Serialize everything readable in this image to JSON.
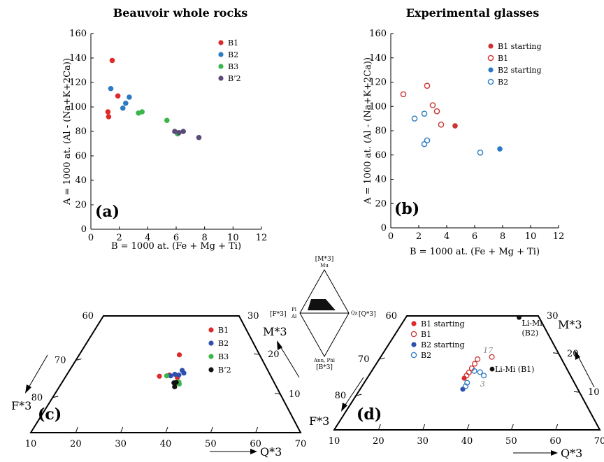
{
  "colors": {
    "B1": "#dd2a2a",
    "B2": "#2f4fae",
    "B3": "#3cb54a",
    "B2b": "#111111",
    "B2_plain": "#2c7bc2",
    "overlap": "#5a4a78",
    "B1_exp": "#cc3333",
    "B2_exp": "#2c7bc2"
  },
  "chart_data": [
    {
      "type": "scatter",
      "panel": "(a)",
      "title": "Beauvoir whole rocks",
      "xlabel": "B = 1000 at. (Fe + Mg + Ti)",
      "ylabel": "A = 1000 at. (Al - (Na+K+2Ca))",
      "xlim": [
        0,
        12
      ],
      "ylim": [
        0,
        160
      ],
      "xticks": [
        "0",
        "2",
        "4",
        "6",
        "8",
        "10",
        "12"
      ],
      "yticks": [
        "0",
        "20",
        "40",
        "60",
        "80",
        "100",
        "120",
        "140",
        "160"
      ],
      "legend_position": "top-right",
      "legend": [
        "B1",
        "B2",
        "B3",
        "B’2"
      ],
      "series": [
        {
          "name": "B1",
          "color": "#dd2a2a",
          "points": [
            [
              1.5,
              138
            ],
            [
              1.9,
              109
            ],
            [
              1.2,
              96
            ],
            [
              1.25,
              92
            ]
          ]
        },
        {
          "name": "B2",
          "color": "#2c7bc2",
          "points": [
            [
              1.4,
              115
            ],
            [
              2.7,
              108
            ],
            [
              2.45,
              103
            ],
            [
              2.25,
              99
            ]
          ]
        },
        {
          "name": "B3",
          "color": "#3cb54a",
          "points": [
            [
              3.35,
              95
            ],
            [
              3.6,
              96
            ],
            [
              5.35,
              89
            ],
            [
              6.1,
              78
            ]
          ]
        },
        {
          "name": "B’2",
          "color": "#5a4a78",
          "points": [
            [
              5.9,
              80
            ],
            [
              6.2,
              79
            ],
            [
              6.5,
              80
            ],
            [
              7.6,
              75
            ]
          ]
        }
      ]
    },
    {
      "type": "scatter",
      "panel": "(b)",
      "title": "Experimental glasses",
      "xlabel": "B = 1000 at. (Fe + Mg + Ti)",
      "ylabel": "A = 1000 at. (Al - (Na+K+2Ca))",
      "xlim": [
        0,
        12
      ],
      "ylim": [
        0,
        160
      ],
      "xticks": [
        "0",
        "2",
        "4",
        "6",
        "8",
        "10",
        "12"
      ],
      "yticks": [
        "0",
        "20",
        "40",
        "60",
        "80",
        "100",
        "120",
        "140",
        "160"
      ],
      "legend_position": "top-right",
      "legend": [
        "B1 starting",
        "B1",
        "B2 starting",
        "B2"
      ],
      "series": [
        {
          "name": "B1 starting",
          "color": "#cc3333",
          "filled": true,
          "points": [
            [
              4.6,
              84
            ]
          ]
        },
        {
          "name": "B1",
          "color": "#cc3333",
          "filled": false,
          "points": [
            [
              0.9,
              110
            ],
            [
              2.6,
              117
            ],
            [
              3.0,
              101
            ],
            [
              3.3,
              96
            ],
            [
              3.6,
              85
            ]
          ]
        },
        {
          "name": "B2 starting",
          "color": "#2c7bc2",
          "filled": true,
          "points": [
            [
              7.8,
              65
            ]
          ]
        },
        {
          "name": "B2",
          "color": "#2c7bc2",
          "filled": false,
          "points": [
            [
              1.7,
              90
            ],
            [
              2.4,
              94
            ],
            [
              2.4,
              69
            ],
            [
              2.6,
              72
            ],
            [
              6.4,
              62
            ]
          ]
        }
      ]
    },
    {
      "type": "scatter",
      "panel": "(c)",
      "subtype": "ternary-trapezoid",
      "axes": {
        "bottom": "Q*3",
        "left": "F*3",
        "right": "M*3"
      },
      "bottom_ticks": [
        "10",
        "20",
        "30",
        "40",
        "50",
        "60",
        "70"
      ],
      "left_ticks": [
        "60",
        "70",
        "80"
      ],
      "right_ticks": [
        "30",
        "20",
        "10"
      ],
      "legend_position": "top-right",
      "legend": [
        "B1",
        "B2",
        "B3",
        "B’2"
      ],
      "series": [
        {
          "name": "B1",
          "color": "#dd2a2a",
          "points": [
            [
              42.2,
              20.0
            ],
            [
              38.0,
              14.5
            ],
            [
              40.2,
              14.8
            ],
            [
              42.0,
              14.2
            ]
          ]
        },
        {
          "name": "B2",
          "color": "#2f4fae",
          "points": [
            [
              43.0,
              16.0
            ],
            [
              43.4,
              15.3
            ],
            [
              42.3,
              14.8
            ],
            [
              41.4,
              15.0
            ],
            [
              40.5,
              14.6
            ]
          ]
        },
        {
          "name": "B3",
          "color": "#3cb54a",
          "points": [
            [
              39.6,
              14.6
            ],
            [
              42.4,
              13.0
            ],
            [
              42.5,
              12.5
            ]
          ]
        },
        {
          "name": "B’2",
          "color": "#111111",
          "points": [
            [
              41.3,
              12.8
            ],
            [
              41.8,
              12.9
            ],
            [
              41.5,
              11.8
            ]
          ]
        }
      ]
    },
    {
      "type": "scatter",
      "panel": "(d)",
      "subtype": "ternary-trapezoid",
      "axes": {
        "bottom": "Q*3",
        "left": "F*3",
        "right": "M*3"
      },
      "bottom_ticks": [
        "10",
        "20",
        "30",
        "40",
        "50",
        "60",
        "70"
      ],
      "left_ticks": [
        "60",
        "70",
        "80"
      ],
      "right_ticks": [
        "30",
        "20",
        "10"
      ],
      "legend_position": "top-left",
      "legend": [
        "B1 starting",
        "B1",
        "B2 starting",
        "B2"
      ],
      "series": [
        {
          "name": "B1 starting",
          "color": "#dd2a2a",
          "filled": true,
          "points": [
            [
              38.8,
              13.6
            ]
          ]
        },
        {
          "name": "B1",
          "color": "#cc3333",
          "filled": false,
          "points": [
            [
              41.6,
              18.6
            ],
            [
              41.0,
              17.4
            ],
            [
              40.4,
              16.2
            ],
            [
              39.8,
              15.1
            ],
            [
              39.3,
              14.3
            ],
            [
              44.8,
              19.2
            ]
          ]
        },
        {
          "name": "B2 starting",
          "color": "#2f4fae",
          "filled": true,
          "points": [
            [
              38.6,
              10.7
            ]
          ]
        },
        {
          "name": "B2",
          "color": "#2c7bc2",
          "filled": false,
          "points": [
            [
              39.5,
              12.4
            ],
            [
              39.2,
              11.5
            ],
            [
              42.3,
              15.2
            ],
            [
              43.2,
              14.3
            ],
            [
              41.0,
              15.5
            ]
          ]
        }
      ],
      "references": [
        {
          "label": "Li-Mi\n(B2)",
          "q": 50.5,
          "m": 29.6
        },
        {
          "label": "Li-Mi (B1)",
          "q": 45.0,
          "m": 16.0
        }
      ],
      "annotations": [
        {
          "text": "17",
          "q": 42.8,
          "m": 20.2
        },
        {
          "text": "3",
          "q": 42.5,
          "m": 11.4
        }
      ]
    }
  ],
  "ternary_inset": {
    "top": "[M*3]",
    "top_sub": "Mu",
    "left": "[F*3]",
    "left_sub_top": "Pl",
    "left_sub_bottom": "Al",
    "right": "[Q*3]",
    "right_sub": "Qz",
    "bottom": "[B*3]",
    "bottom_sub": "Ann, Phl"
  }
}
